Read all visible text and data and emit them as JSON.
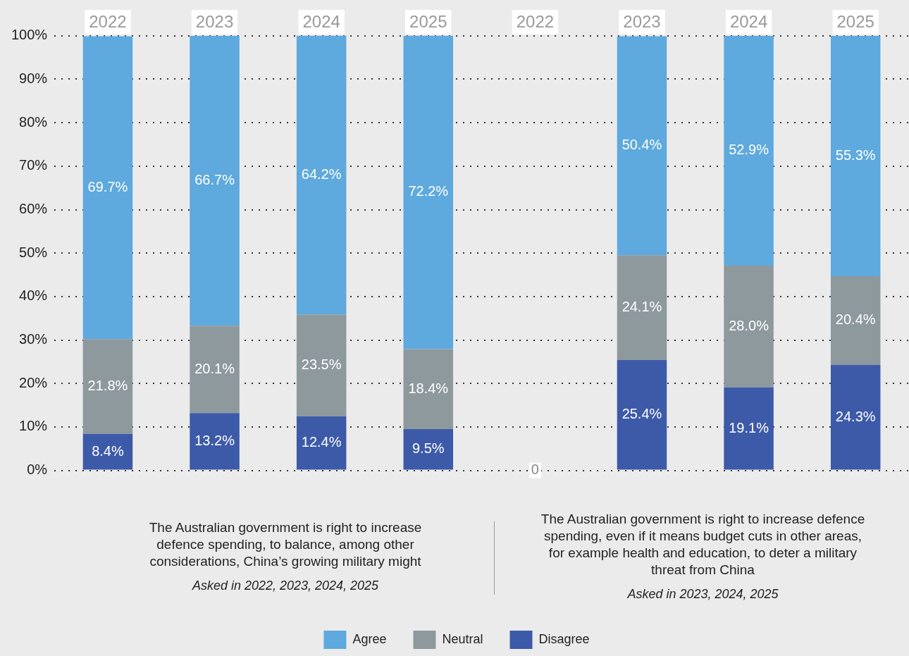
{
  "chart_data": {
    "type": "bar",
    "stacked": true,
    "categories": [
      "2022",
      "2023",
      "2024",
      "2025",
      "2022",
      "2023",
      "2024",
      "2025"
    ],
    "series": [
      {
        "name": "Disagree",
        "color": "#3d5aa9",
        "values": [
          8.4,
          13.2,
          12.4,
          9.5,
          0,
          25.4,
          19.1,
          24.3
        ],
        "value_labels": [
          "8.4%",
          "13.2%",
          "12.4%",
          "9.5%",
          "0",
          "25.4%",
          "19.1%",
          "24.3%"
        ]
      },
      {
        "name": "Neutral",
        "color": "#8e999e",
        "values": [
          21.8,
          20.1,
          23.5,
          18.4,
          null,
          24.1,
          28.0,
          20.4
        ],
        "value_labels": [
          "21.8%",
          "20.1%",
          "23.5%",
          "18.4%",
          null,
          "24.1%",
          "28.0%",
          "20.4%"
        ]
      },
      {
        "name": "Agree",
        "color": "#5ea9dd",
        "values": [
          69.7,
          66.7,
          64.2,
          72.2,
          null,
          50.4,
          52.9,
          55.3
        ],
        "value_labels": [
          "69.7%",
          "66.7%",
          "64.2%",
          "72.2%",
          null,
          "50.4%",
          "52.9%",
          "55.3%"
        ]
      }
    ],
    "ylim": [
      0,
      100
    ],
    "yticks": [
      {
        "value": 0,
        "label": "0%"
      },
      {
        "value": 10,
        "label": "10%"
      },
      {
        "value": 20,
        "label": "20%"
      },
      {
        "value": 30,
        "label": "30%"
      },
      {
        "value": 40,
        "label": "40%"
      },
      {
        "value": 50,
        "label": "50%"
      },
      {
        "value": 60,
        "label": "60%"
      },
      {
        "value": 70,
        "label": "70%"
      },
      {
        "value": 80,
        "label": "80%"
      },
      {
        "value": 90,
        "label": "90%"
      },
      {
        "value": 100,
        "label": "100%"
      }
    ],
    "grid": "y",
    "legend": "bottom",
    "annotations": [
      "The Australian government is right to increase defence spending, to balance, among other considerations, China’s growing military might",
      "Asked in 2022, 2023, 2024, 2025",
      "The Australian government is right to increase defence spending, even if it means budget cuts in other areas, for example health and education, to deter a military threat from China",
      "Asked in 2023, 2024, 2025"
    ]
  }
}
